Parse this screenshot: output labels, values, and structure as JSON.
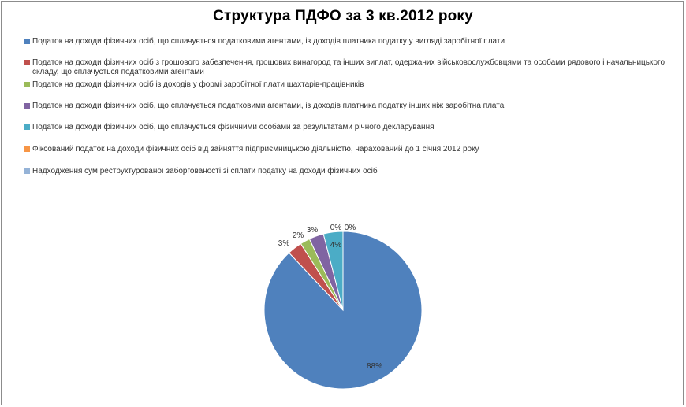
{
  "chart_data": {
    "type": "pie",
    "title": "Структура ПДФО за 3 кв.2012 року",
    "legend_position": "top",
    "slices": [
      {
        "label": "Податок на доходи фізичних осіб, що сплачується податковими агентами, із доходів платника податку у вигляді заробітної плати",
        "value": 88,
        "value_label": "88%",
        "color": "#4f81bd"
      },
      {
        "label": "Податок на доходи фізичних осіб з грошового забезпечення, грошових винагород та інших виплат, одержаних військовослужбовцями та особами рядового і начальницького складу, що сплачується податковими агентами",
        "value": 3,
        "value_label": "3%",
        "color": "#c0504d"
      },
      {
        "label": "Податок на доходи фізичних осіб із доходів у формі заробітної плати шахтарів-працівників",
        "value": 2,
        "value_label": "2%",
        "color": "#9bbb59"
      },
      {
        "label": "Податок на доходи фізичних осіб, що сплачується податковими агентами, із доходів платника податку інших ніж заробітна плата",
        "value": 3,
        "value_label": "3%",
        "color": "#8064a2"
      },
      {
        "label": "Податок на доходи фізичних осіб, що сплачується фізичними особами за результатами річного декларування",
        "value": 4,
        "value_label": "4%",
        "color": "#4bacc6"
      },
      {
        "label": "Фіксований податок на доходи фізичних осіб від зайняття підприємницькою діяльністю, нарахований до 1 січня 2012 року",
        "value": 0,
        "value_label": "0%",
        "color": "#f79646"
      },
      {
        "label": "Надходження сум реструктурованої заборгованості зі сплати податку на доходи фізичних осіб",
        "value": 0,
        "value_label": "0%",
        "color": "#95b3d7"
      }
    ]
  }
}
